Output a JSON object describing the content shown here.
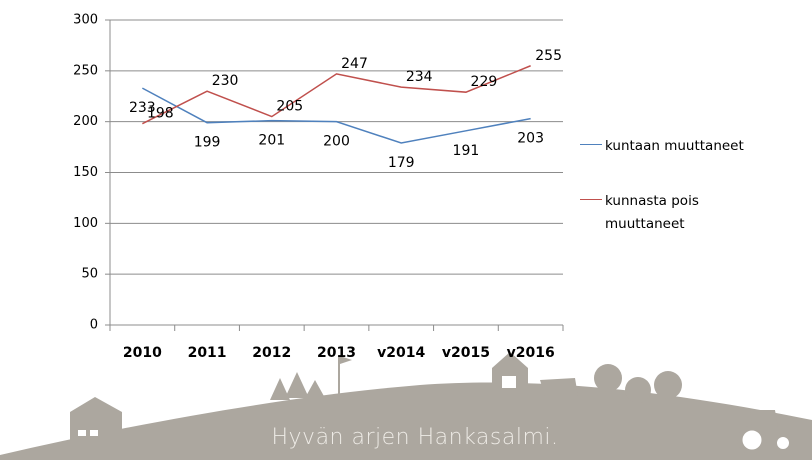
{
  "chart_data": {
    "type": "line",
    "categories": [
      "2010",
      "2011",
      "2012",
      "2013",
      "v2014",
      "v2015",
      "v2016"
    ],
    "series": [
      {
        "name": "kuntaan muuttaneet",
        "color": "#4f81bd",
        "values": [
          233,
          199,
          201,
          200,
          179,
          191,
          203
        ]
      },
      {
        "name": "kunnasta pois muuttaneet",
        "color": "#c0504d",
        "values": [
          198,
          230,
          205,
          247,
          234,
          229,
          255
        ]
      }
    ],
    "ylim": [
      0,
      300
    ],
    "yticks": [
      0,
      50,
      100,
      150,
      200,
      250,
      300
    ],
    "grid": true,
    "legend": "right"
  },
  "branding": {
    "slogan": "Hyvän arjen Hankasalmi."
  }
}
